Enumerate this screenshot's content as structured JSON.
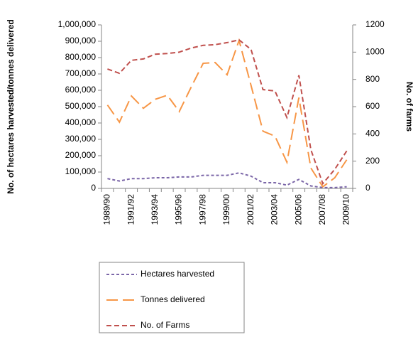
{
  "chart_data": {
    "type": "line",
    "y_label": "No. of hectares harvested/tonnes delivered",
    "y2_label": "No. of farms",
    "categories": [
      "1989/90",
      null,
      "1991/92",
      null,
      "1993/94",
      null,
      "1995/96",
      null,
      "1997/98",
      null,
      "1999/00",
      null,
      "2001/02",
      null,
      "2003/04",
      null,
      "2005/06",
      null,
      "2007/08",
      null,
      "2009/10"
    ],
    "series": [
      {
        "name": "Hectares harvested",
        "color": "#7b66a8",
        "values": [
          60000,
          45000,
          60000,
          60000,
          65000,
          65000,
          70000,
          70000,
          80000,
          80000,
          80000,
          95000,
          75000,
          35000,
          35000,
          20000,
          55000,
          15000,
          5000,
          5000,
          10000
        ]
      },
      {
        "name": "Tonnes delivered",
        "color": "#f79646",
        "values": [
          510000,
          405000,
          565000,
          490000,
          545000,
          570000,
          470000,
          620000,
          765000,
          770000,
          695000,
          905000,
          630000,
          350000,
          320000,
          160000,
          555000,
          125000,
          10000,
          65000,
          175000
        ]
      },
      {
        "name": "No. of Farms",
        "color": "#c0504d",
        "axis": "y2",
        "values": [
          876,
          845,
          940,
          950,
          985,
          990,
          1000,
          1030,
          1050,
          1055,
          1070,
          1090,
          1020,
          725,
          715,
          520,
          830,
          285,
          35,
          140,
          275
        ]
      }
    ],
    "ylim": [
      0,
      1000000
    ],
    "yticks": [
      0,
      {
        "value": 100000,
        "label": "100,000"
      },
      {
        "value": 200000,
        "label": "200,000"
      },
      {
        "value": 300000,
        "label": "300,000"
      },
      {
        "value": 400000,
        "label": "400,000"
      },
      {
        "value": 500000,
        "label": "500,000"
      },
      {
        "value": 600000,
        "label": "600,000"
      },
      {
        "value": 700000,
        "label": "700,000"
      },
      {
        "value": 800000,
        "label": "800,000"
      },
      {
        "value": 900000,
        "label": "900,000"
      },
      {
        "value": 1000000,
        "label": "1,000,000"
      }
    ],
    "y2lim": [
      0,
      1200
    ],
    "y2ticks": [
      0,
      200,
      400,
      600,
      800,
      1000,
      1200
    ],
    "grid": false,
    "legend": "bottom"
  }
}
